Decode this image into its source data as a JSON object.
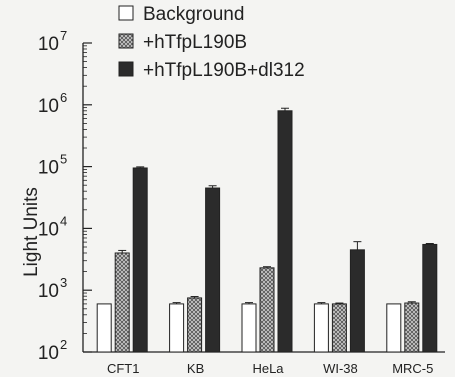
{
  "chart_data": {
    "type": "bar",
    "title": "",
    "xlabel": "",
    "ylabel": "Light Units",
    "yscale": "log",
    "ylim": [
      100,
      10000000
    ],
    "ytick_labels": [
      {
        "base": "10",
        "exp": "2"
      },
      {
        "base": "10",
        "exp": "3"
      },
      {
        "base": "10",
        "exp": "4"
      },
      {
        "base": "10",
        "exp": "5"
      },
      {
        "base": "10",
        "exp": "6"
      },
      {
        "base": "10",
        "exp": "7"
      }
    ],
    "categories": [
      "CFT1",
      "KB",
      "HeLa",
      "WI-38",
      "MRC-5"
    ],
    "legend_position": "top",
    "grid": false,
    "series": [
      {
        "name": "Background",
        "fill": "white",
        "values": [
          600,
          600,
          600,
          600,
          600
        ],
        "error": [
          0,
          30,
          30,
          30,
          0
        ]
      },
      {
        "name": "+hTfpL190B",
        "fill": "crosshatch",
        "values": [
          4000,
          750,
          2300,
          600,
          620
        ],
        "error": [
          400,
          40,
          100,
          20,
          30
        ]
      },
      {
        "name": "+hTfpL190B+dl312",
        "fill": "dark",
        "values": [
          95000,
          45000,
          800000,
          4500,
          5500
        ],
        "error": [
          4000,
          4000,
          80000,
          1600,
          200
        ]
      }
    ]
  }
}
